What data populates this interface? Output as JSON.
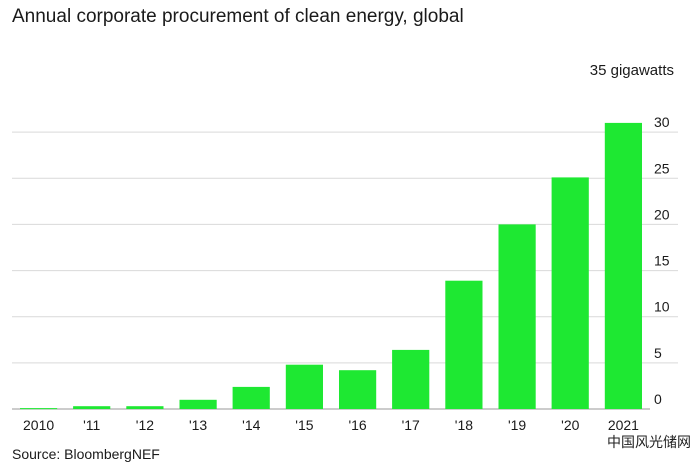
{
  "chart_data": {
    "type": "bar",
    "title": "Annual corporate procurement of clean energy, global",
    "source": "Source: BloombergNEF",
    "unit_label": "35 gigawatts",
    "categories": [
      "2010",
      "'11",
      "'12",
      "'13",
      "'14",
      "'15",
      "'16",
      "'17",
      "'18",
      "'19",
      "'20",
      "2021"
    ],
    "values": [
      0.1,
      0.3,
      0.3,
      1.0,
      2.4,
      4.8,
      4.2,
      6.4,
      13.9,
      20.0,
      25.1,
      31.0
    ],
    "ylim": [
      0,
      35
    ],
    "yticks": [
      "0",
      "5",
      "10",
      "15",
      "20",
      "25",
      "30"
    ],
    "ytick_values": [
      0,
      5,
      10,
      15,
      20,
      25,
      30
    ],
    "bar_color": "#1ee832",
    "grid": true,
    "grid_color": "#d9d9d9"
  },
  "watermark": "中国风光储网"
}
